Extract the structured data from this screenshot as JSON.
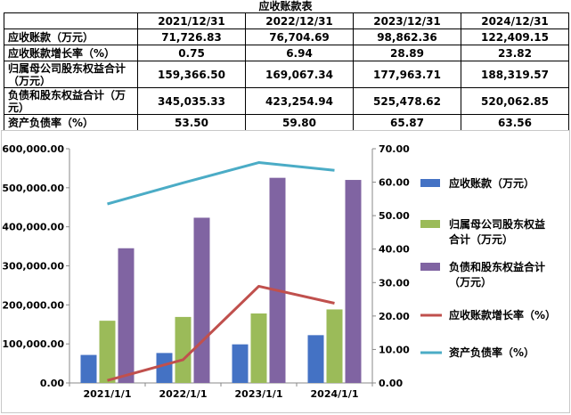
{
  "table": {
    "title": "应收账款表",
    "headers": [
      "",
      "2021/12/31",
      "2022/12/31",
      "2023/12/31",
      "2024/12/31"
    ],
    "rows": [
      {
        "label": "应收账款（万元）",
        "values": [
          "71,726.83",
          "76,704.69",
          "98,862.36",
          "122,409.15"
        ]
      },
      {
        "label": "应收账款增长率（%）",
        "values": [
          "0.75",
          "6.94",
          "28.89",
          "23.82"
        ]
      },
      {
        "label": "归属母公司股东权益合计（万元）",
        "values": [
          "159,366.50",
          "169,067.34",
          "177,963.71",
          "188,319.57"
        ]
      },
      {
        "label": "负债和股东权益合计（万元）",
        "values": [
          "345,035.33",
          "423,254.94",
          "525,478.62",
          "520,062.85"
        ]
      },
      {
        "label": "资产负债率（%）",
        "values": [
          "53.50",
          "59.80",
          "65.87",
          "63.56"
        ]
      }
    ]
  },
  "chart_data": {
    "type": "bar",
    "categories": [
      "2021/1/1",
      "2022/1/1",
      "2023/1/1",
      "2024/1/1"
    ],
    "ylim": [
      0,
      600000
    ],
    "yticks": [
      "0.00",
      "100,000.00",
      "200,000.00",
      "300,000.00",
      "400,000.00",
      "500,000.00",
      "600,000.00"
    ],
    "y2lim": [
      0,
      70
    ],
    "y2ticks": [
      "0.00",
      "10.00",
      "20.00",
      "30.00",
      "40.00",
      "50.00",
      "60.00",
      "70.00"
    ],
    "grid": false,
    "legend_position": "right",
    "series": [
      {
        "name": "应收账款（万元）",
        "kind": "bar",
        "axis": "left",
        "color": "#4472C4",
        "values": [
          71726.83,
          76704.69,
          98862.36,
          122409.15
        ]
      },
      {
        "name": "归属母公司股东权益合计（万元）",
        "kind": "bar",
        "axis": "left",
        "color": "#9BBB59",
        "values": [
          159366.5,
          169067.34,
          177963.71,
          188319.57
        ]
      },
      {
        "name": "负债和股东权益合计（万元）",
        "kind": "bar",
        "axis": "left",
        "color": "#8064A2",
        "values": [
          345035.33,
          423254.94,
          525478.62,
          520062.85
        ]
      },
      {
        "name": "应收账款增长率（%）",
        "kind": "line",
        "axis": "right",
        "color": "#C0504D",
        "values": [
          0.75,
          6.94,
          28.89,
          23.82
        ]
      },
      {
        "name": "资产负债率（%）",
        "kind": "line",
        "axis": "right",
        "color": "#4BACC6",
        "values": [
          53.5,
          59.8,
          65.87,
          63.56
        ]
      }
    ],
    "legend": [
      {
        "lines": [
          "应收账款（万元）"
        ],
        "color": "#4472C4",
        "kind": "bar"
      },
      {
        "lines": [
          "归属母公司股东权益",
          "合计（万元）"
        ],
        "color": "#9BBB59",
        "kind": "bar"
      },
      {
        "lines": [
          "负债和股东权益合计",
          "（万元）"
        ],
        "color": "#8064A2",
        "kind": "bar"
      },
      {
        "lines": [
          "应收账款增长率（%）"
        ],
        "color": "#C0504D",
        "kind": "line"
      },
      {
        "lines": [
          "资产负债率（%）"
        ],
        "color": "#4BACC6",
        "kind": "line"
      }
    ]
  }
}
